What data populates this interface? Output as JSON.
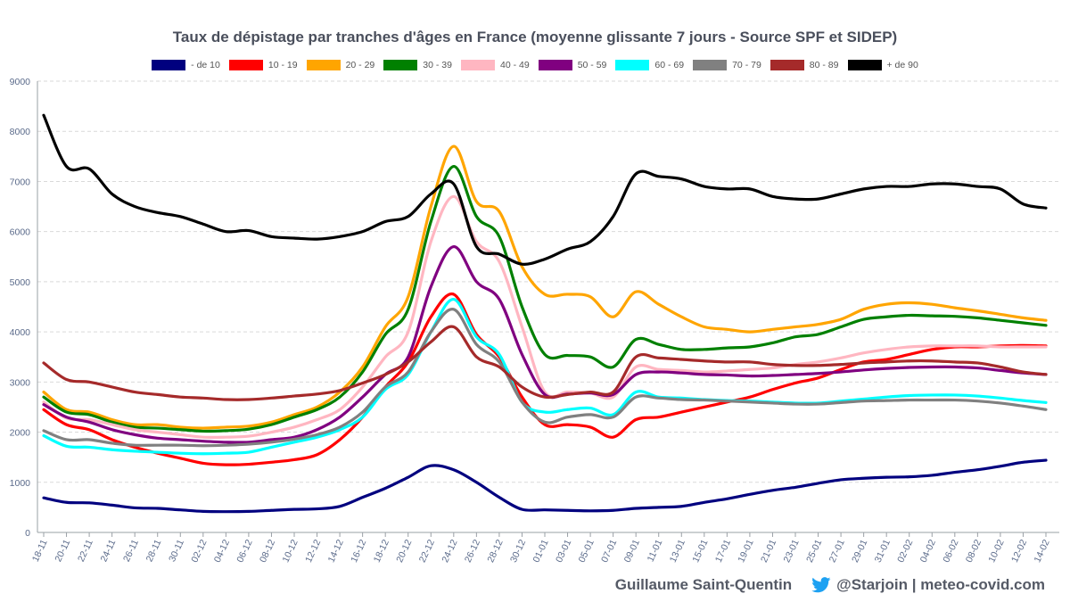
{
  "chart_data": {
    "type": "line",
    "title": "Taux de dépistage par tranches d'âges en France (moyenne glissante 7 jours - Source SPF et SIDEP)",
    "xlabel": "",
    "ylabel": "",
    "ylim": [
      0,
      9000
    ],
    "yticks": [
      0,
      1000,
      2000,
      3000,
      4000,
      5000,
      6000,
      7000,
      8000,
      9000
    ],
    "grid": true,
    "legend_position": "top-center",
    "x_tick_labels": [
      "18-11",
      "20-11",
      "22-11",
      "24-11",
      "26-11",
      "28-11",
      "30-11",
      "02-12",
      "04-12",
      "06-12",
      "08-12",
      "10-12",
      "12-12",
      "14-12",
      "16-12",
      "18-12",
      "20-12",
      "22-12",
      "24-12",
      "26-12",
      "28-12",
      "30-12",
      "01-01",
      "03-01",
      "05-01",
      "07-01",
      "09-01",
      "11-01",
      "13-01",
      "15-01",
      "17-01",
      "19-01",
      "21-01",
      "23-01",
      "25-01",
      "27-01",
      "29-01",
      "31-01",
      "02-02",
      "04-02",
      "06-02",
      "08-02",
      "10-02",
      "12-02",
      "14-02"
    ],
    "series": [
      {
        "name": "- de 10",
        "color": "#00007f",
        "values": [
          690,
          600,
          590,
          545,
          490,
          480,
          450,
          420,
          415,
          420,
          440,
          460,
          470,
          520,
          700,
          880,
          1100,
          1330,
          1250,
          1000,
          700,
          460,
          450,
          440,
          430,
          440,
          480,
          500,
          520,
          600,
          670,
          760,
          840,
          900,
          980,
          1050,
          1080,
          1100,
          1110,
          1140,
          1200,
          1250,
          1320,
          1400,
          1440
        ]
      },
      {
        "name": "10 - 19",
        "color": "#ff0000",
        "values": [
          2450,
          2150,
          2050,
          1850,
          1700,
          1580,
          1480,
          1380,
          1350,
          1360,
          1400,
          1450,
          1550,
          1850,
          2300,
          2900,
          3400,
          4300,
          4750,
          3950,
          3500,
          2700,
          2150,
          2150,
          2100,
          1900,
          2250,
          2300,
          2400,
          2500,
          2600,
          2700,
          2850,
          2980,
          3080,
          3250,
          3400,
          3450,
          3550,
          3650,
          3700,
          3700,
          3720,
          3730,
          3720
        ]
      },
      {
        "name": "20 - 29",
        "color": "#ffa500",
        "values": [
          2800,
          2450,
          2400,
          2250,
          2150,
          2150,
          2100,
          2080,
          2100,
          2120,
          2200,
          2350,
          2500,
          2800,
          3300,
          4100,
          4700,
          6500,
          7700,
          6600,
          6400,
          5300,
          4750,
          4750,
          4700,
          4300,
          4800,
          4550,
          4300,
          4100,
          4050,
          4000,
          4050,
          4100,
          4150,
          4250,
          4450,
          4550,
          4580,
          4550,
          4480,
          4420,
          4350,
          4280,
          4230
        ]
      },
      {
        "name": "30 - 39",
        "color": "#008000",
        "values": [
          2700,
          2400,
          2350,
          2200,
          2100,
          2080,
          2050,
          2020,
          2030,
          2060,
          2150,
          2300,
          2450,
          2700,
          3200,
          3950,
          4450,
          6200,
          7300,
          6300,
          5900,
          4500,
          3550,
          3530,
          3500,
          3300,
          3850,
          3750,
          3650,
          3650,
          3680,
          3700,
          3780,
          3900,
          3950,
          4100,
          4250,
          4300,
          4330,
          4320,
          4310,
          4280,
          4230,
          4180,
          4130
        ]
      },
      {
        "name": "40 - 49",
        "color": "#ffb6c1",
        "values": [
          2600,
          2280,
          2250,
          2150,
          2050,
          2000,
          1950,
          1900,
          1900,
          1920,
          2000,
          2100,
          2250,
          2450,
          2900,
          3500,
          4000,
          5800,
          6700,
          5800,
          5400,
          4100,
          2800,
          2800,
          2780,
          2700,
          3300,
          3250,
          3230,
          3200,
          3220,
          3250,
          3280,
          3350,
          3400,
          3480,
          3580,
          3650,
          3700,
          3720,
          3720,
          3720,
          3700,
          3700,
          3700
        ]
      },
      {
        "name": "50 - 59",
        "color": "#800080",
        "values": [
          2550,
          2300,
          2200,
          2050,
          1950,
          1880,
          1850,
          1820,
          1800,
          1800,
          1850,
          1900,
          2050,
          2300,
          2700,
          3150,
          3500,
          4900,
          5700,
          5000,
          4650,
          3550,
          2750,
          2760,
          2780,
          2750,
          3150,
          3200,
          3180,
          3150,
          3140,
          3120,
          3130,
          3150,
          3170,
          3200,
          3240,
          3270,
          3290,
          3300,
          3300,
          3280,
          3230,
          3180,
          3150
        ]
      },
      {
        "name": "60 - 69",
        "color": "#00ffff",
        "values": [
          1930,
          1720,
          1700,
          1650,
          1620,
          1600,
          1580,
          1570,
          1580,
          1600,
          1700,
          1800,
          1900,
          2050,
          2300,
          2850,
          3150,
          4000,
          4650,
          3900,
          3550,
          2600,
          2400,
          2450,
          2480,
          2350,
          2800,
          2700,
          2680,
          2650,
          2630,
          2620,
          2600,
          2580,
          2580,
          2620,
          2660,
          2700,
          2730,
          2740,
          2740,
          2720,
          2680,
          2630,
          2590
        ]
      },
      {
        "name": "70 - 79",
        "color": "#808080",
        "values": [
          2030,
          1850,
          1850,
          1780,
          1740,
          1740,
          1740,
          1730,
          1740,
          1760,
          1800,
          1860,
          1950,
          2100,
          2400,
          2900,
          3200,
          4000,
          4450,
          3750,
          3400,
          2600,
          2200,
          2300,
          2350,
          2300,
          2700,
          2680,
          2650,
          2640,
          2620,
          2600,
          2580,
          2560,
          2560,
          2590,
          2620,
          2630,
          2640,
          2640,
          2640,
          2620,
          2580,
          2520,
          2450
        ]
      },
      {
        "name": "80 - 89",
        "color": "#a52a2a",
        "values": [
          3380,
          3050,
          3000,
          2900,
          2800,
          2750,
          2700,
          2680,
          2650,
          2650,
          2680,
          2720,
          2760,
          2830,
          2980,
          3150,
          3400,
          3800,
          4100,
          3500,
          3300,
          2900,
          2700,
          2750,
          2800,
          2800,
          3500,
          3480,
          3450,
          3420,
          3400,
          3400,
          3350,
          3330,
          3330,
          3350,
          3380,
          3400,
          3420,
          3420,
          3400,
          3380,
          3300,
          3200,
          3150
        ]
      },
      {
        "name": "+ de 90",
        "color": "#000000",
        "values": [
          8320,
          7300,
          7250,
          6750,
          6500,
          6380,
          6300,
          6150,
          6000,
          6020,
          5900,
          5870,
          5850,
          5900,
          6000,
          6200,
          6300,
          6750,
          6950,
          5700,
          5550,
          5350,
          5450,
          5650,
          5800,
          6300,
          7150,
          7100,
          7050,
          6900,
          6850,
          6850,
          6700,
          6650,
          6650,
          6750,
          6850,
          6900,
          6900,
          6950,
          6950,
          6900,
          6850,
          6550,
          6470
        ]
      }
    ]
  },
  "footer": {
    "author": "Guillaume Saint-Quentin",
    "handle": "@Starjoin | meteo-covid.com"
  },
  "colors": {
    "twitter": "#1da1f2",
    "grid": "#d9d9d9",
    "axis": "#9aa0a6",
    "tick_label": "#5a6a8a"
  }
}
